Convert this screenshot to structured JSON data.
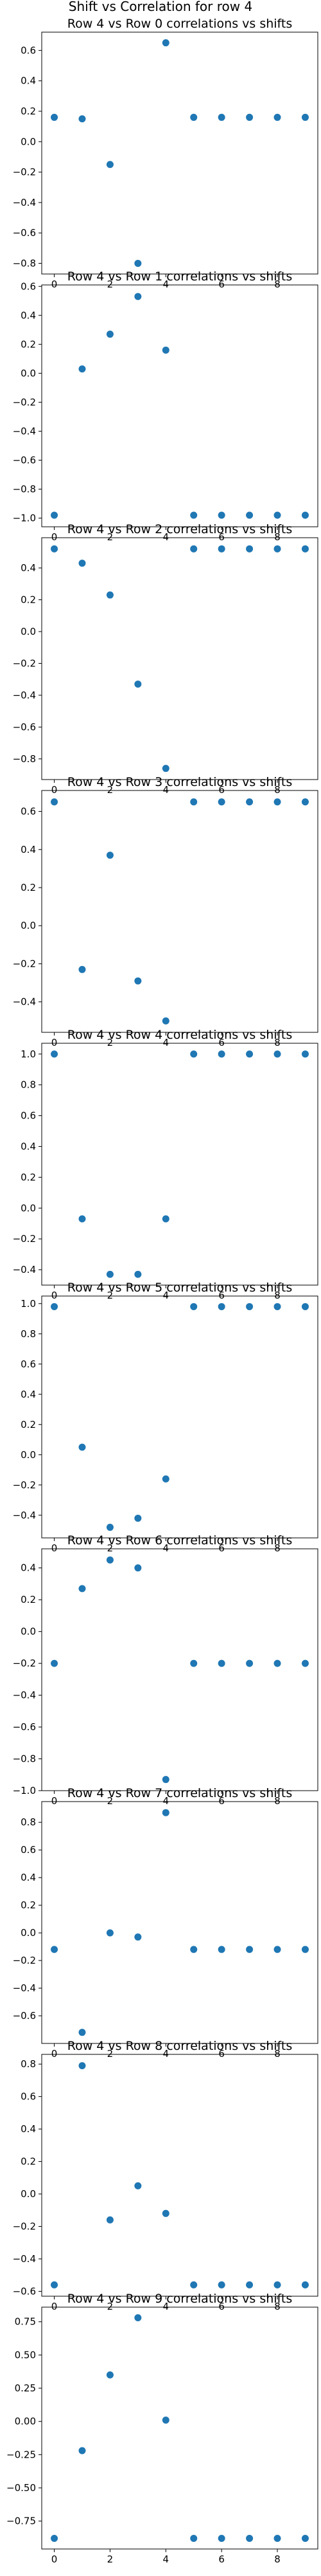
{
  "figure": {
    "suptitle": "Shift vs Correlation for row 4",
    "colors": {
      "points": "#1f77b4",
      "axes": "#000000",
      "background": "#ffffff"
    }
  },
  "chart_data": [
    {
      "type": "scatter",
      "title": "Row 4 vs Row 0 correlations vs shifts",
      "xlabel": "",
      "ylabel": "",
      "x": [
        0,
        1,
        2,
        3,
        4,
        5,
        6,
        7,
        8,
        9
      ],
      "y": [
        0.16,
        0.15,
        -0.15,
        -0.8,
        0.65,
        0.16,
        0.16,
        0.16,
        0.16,
        0.16
      ],
      "xlim": [
        -0.45,
        9.45
      ],
      "ylim": [
        -0.87,
        0.72
      ],
      "xticks": [
        0,
        2,
        4,
        6,
        8
      ],
      "yticks": [
        -0.8,
        -0.6,
        -0.4,
        -0.2,
        0.0,
        0.2,
        0.4,
        0.6
      ],
      "grid": false,
      "legend": "none"
    },
    {
      "type": "scatter",
      "title": "Row 4 vs Row 1 correlations vs shifts",
      "xlabel": "",
      "ylabel": "",
      "x": [
        0,
        1,
        2,
        3,
        4,
        5,
        6,
        7,
        8,
        9
      ],
      "y": [
        -0.98,
        0.03,
        0.27,
        0.53,
        0.16,
        -0.98,
        -0.98,
        -0.98,
        -0.98,
        -0.98
      ],
      "xlim": [
        -0.45,
        9.45
      ],
      "ylim": [
        -1.06,
        0.61
      ],
      "xticks": [
        0,
        2,
        4,
        6,
        8
      ],
      "yticks": [
        -1.0,
        -0.8,
        -0.6,
        -0.4,
        -0.2,
        0.0,
        0.2,
        0.4,
        0.6
      ],
      "grid": false,
      "legend": "none"
    },
    {
      "type": "scatter",
      "title": "Row 4 vs Row 2 correlations vs shifts",
      "xlabel": "",
      "ylabel": "",
      "x": [
        0,
        1,
        2,
        3,
        4,
        5,
        6,
        7,
        8,
        9
      ],
      "y": [
        0.52,
        0.43,
        0.23,
        -0.33,
        -0.86,
        0.52,
        0.52,
        0.52,
        0.52,
        0.52
      ],
      "xlim": [
        -0.45,
        9.45
      ],
      "ylim": [
        -0.93,
        0.59
      ],
      "xticks": [
        0,
        2,
        4,
        6,
        8
      ],
      "yticks": [
        -0.8,
        -0.6,
        -0.4,
        -0.2,
        0.0,
        0.2,
        0.4
      ],
      "grid": false,
      "legend": "none"
    },
    {
      "type": "scatter",
      "title": "Row 4 vs Row 3 correlations vs shifts",
      "xlabel": "",
      "ylabel": "",
      "x": [
        0,
        1,
        2,
        3,
        4,
        5,
        6,
        7,
        8,
        9
      ],
      "y": [
        0.65,
        -0.23,
        0.37,
        -0.29,
        -0.5,
        0.65,
        0.65,
        0.65,
        0.65,
        0.65
      ],
      "xlim": [
        -0.45,
        9.45
      ],
      "ylim": [
        -0.56,
        0.71
      ],
      "xticks": [
        0,
        2,
        4,
        6,
        8
      ],
      "yticks": [
        -0.4,
        -0.2,
        0.0,
        0.2,
        0.4,
        0.6
      ],
      "grid": false,
      "legend": "none"
    },
    {
      "type": "scatter",
      "title": "Row 4 vs Row 4 correlations vs shifts",
      "xlabel": "",
      "ylabel": "",
      "x": [
        0,
        1,
        2,
        3,
        4,
        5,
        6,
        7,
        8,
        9
      ],
      "y": [
        1.0,
        -0.07,
        -0.43,
        -0.43,
        -0.07,
        1.0,
        1.0,
        1.0,
        1.0,
        1.0
      ],
      "xlim": [
        -0.45,
        9.45
      ],
      "ylim": [
        -0.5,
        1.07
      ],
      "xticks": [
        0,
        2,
        4,
        6,
        8
      ],
      "yticks": [
        -0.4,
        -0.2,
        0.0,
        0.2,
        0.4,
        0.6,
        0.8,
        1.0
      ],
      "grid": false,
      "legend": "none"
    },
    {
      "type": "scatter",
      "title": "Row 4 vs Row 5 correlations vs shifts",
      "xlabel": "",
      "ylabel": "",
      "x": [
        0,
        1,
        2,
        3,
        4,
        5,
        6,
        7,
        8,
        9
      ],
      "y": [
        0.98,
        0.05,
        -0.48,
        -0.42,
        -0.16,
        0.98,
        0.98,
        0.98,
        0.98,
        0.98
      ],
      "xlim": [
        -0.45,
        9.45
      ],
      "ylim": [
        -0.55,
        1.05
      ],
      "xticks": [
        0,
        2,
        4,
        6,
        8
      ],
      "yticks": [
        -0.4,
        -0.2,
        0.0,
        0.2,
        0.4,
        0.6,
        0.8,
        1.0
      ],
      "grid": false,
      "legend": "none"
    },
    {
      "type": "scatter",
      "title": "Row 4 vs Row 6 correlations vs shifts",
      "xlabel": "",
      "ylabel": "",
      "x": [
        0,
        1,
        2,
        3,
        4,
        5,
        6,
        7,
        8,
        9
      ],
      "y": [
        -0.2,
        0.27,
        0.45,
        0.4,
        -0.93,
        -0.2,
        -0.2,
        -0.2,
        -0.2,
        -0.2
      ],
      "xlim": [
        -0.45,
        9.45
      ],
      "ylim": [
        -1.0,
        0.52
      ],
      "xticks": [
        0,
        2,
        4,
        6,
        8
      ],
      "yticks": [
        -1.0,
        -0.8,
        -0.6,
        -0.4,
        -0.2,
        0.0,
        0.2,
        0.4
      ],
      "grid": false,
      "legend": "none"
    },
    {
      "type": "scatter",
      "title": "Row 4 vs Row 7 correlations vs shifts",
      "xlabel": "",
      "ylabel": "",
      "x": [
        0,
        1,
        2,
        3,
        4,
        5,
        6,
        7,
        8,
        9
      ],
      "y": [
        -0.12,
        -0.72,
        0.0,
        -0.03,
        0.87,
        -0.12,
        -0.12,
        -0.12,
        -0.12,
        -0.12
      ],
      "xlim": [
        -0.45,
        9.45
      ],
      "ylim": [
        -0.8,
        0.95
      ],
      "xticks": [
        0,
        2,
        4,
        6,
        8
      ],
      "yticks": [
        -0.6,
        -0.4,
        -0.2,
        0.0,
        0.2,
        0.4,
        0.6,
        0.8
      ],
      "grid": false,
      "legend": "none"
    },
    {
      "type": "scatter",
      "title": "Row 4 vs Row 8 correlations vs shifts",
      "xlabel": "",
      "ylabel": "",
      "x": [
        0,
        1,
        2,
        3,
        4,
        5,
        6,
        7,
        8,
        9
      ],
      "y": [
        -0.56,
        0.79,
        -0.16,
        0.05,
        -0.12,
        -0.56,
        -0.56,
        -0.56,
        -0.56,
        -0.56
      ],
      "xlim": [
        -0.45,
        9.45
      ],
      "ylim": [
        -0.63,
        0.86
      ],
      "xticks": [
        0,
        2,
        4,
        6,
        8
      ],
      "yticks": [
        -0.6,
        -0.4,
        -0.2,
        0.0,
        0.2,
        0.4,
        0.6,
        0.8
      ],
      "grid": false,
      "legend": "none"
    },
    {
      "type": "scatter",
      "title": "Row 4 vs Row 9 correlations vs shifts",
      "xlabel": "",
      "ylabel": "",
      "x": [
        0,
        1,
        2,
        3,
        4,
        5,
        6,
        7,
        8,
        9
      ],
      "y": [
        -0.88,
        -0.22,
        0.35,
        0.78,
        0.01,
        -0.88,
        -0.88,
        -0.88,
        -0.88,
        -0.88
      ],
      "xlim": [
        -0.45,
        9.45
      ],
      "ylim": [
        -0.96,
        0.86
      ],
      "xticks": [
        0,
        2,
        4,
        6,
        8
      ],
      "yticks": [
        -0.75,
        -0.5,
        -0.25,
        0.0,
        0.25,
        0.5,
        0.75
      ],
      "grid": false,
      "legend": "none"
    }
  ]
}
